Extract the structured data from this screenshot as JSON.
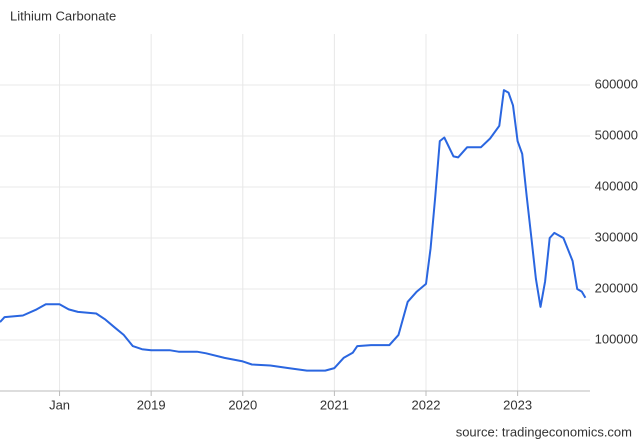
{
  "chart_data": {
    "type": "line",
    "title": "Lithium Carbonate",
    "source": "source: tradingeconomics.com",
    "x": [
      2017.35,
      2017.4,
      2017.6,
      2017.75,
      2017.85,
      2018.0,
      2018.1,
      2018.2,
      2018.4,
      2018.5,
      2018.6,
      2018.7,
      2018.8,
      2018.9,
      2019.0,
      2019.2,
      2019.3,
      2019.5,
      2019.6,
      2019.8,
      2020.0,
      2020.1,
      2020.3,
      2020.5,
      2020.7,
      2020.9,
      2021.0,
      2021.1,
      2021.2,
      2021.25,
      2021.4,
      2021.6,
      2021.7,
      2021.8,
      2021.9,
      2022.0,
      2022.05,
      2022.1,
      2022.15,
      2022.2,
      2022.3,
      2022.35,
      2022.45,
      2022.6,
      2022.7,
      2022.8,
      2022.85,
      2022.9,
      2022.95,
      2023.0,
      2023.05,
      2023.1,
      2023.15,
      2023.2,
      2023.25,
      2023.3,
      2023.35,
      2023.4,
      2023.5,
      2023.6,
      2023.65,
      2023.7,
      2023.74
    ],
    "series": [
      {
        "name": "Lithium Carbonate",
        "color": "#2a66e0",
        "values": [
          135000,
          145000,
          148000,
          160000,
          170000,
          170000,
          160000,
          155000,
          152000,
          140000,
          125000,
          110000,
          88000,
          82000,
          80000,
          80000,
          77000,
          77000,
          74000,
          65000,
          58000,
          52000,
          50000,
          45000,
          40000,
          40000,
          45000,
          65000,
          75000,
          88000,
          90000,
          90000,
          110000,
          175000,
          195000,
          210000,
          280000,
          380000,
          490000,
          497000,
          460000,
          458000,
          478000,
          478000,
          495000,
          520000,
          590000,
          585000,
          560000,
          490000,
          465000,
          380000,
          300000,
          220000,
          165000,
          215000,
          300000,
          310000,
          300000,
          255000,
          200000,
          195000,
          183000
        ]
      }
    ],
    "xlim": [
      2017.35,
      2023.79
    ],
    "xticks": [
      {
        "value": 2018,
        "label": "Jan"
      },
      2019,
      2020,
      2021,
      2022,
      2023
    ],
    "ylim": [
      0,
      700000
    ],
    "yticks": [
      100000,
      200000,
      300000,
      400000,
      500000,
      600000
    ],
    "grid": true
  }
}
